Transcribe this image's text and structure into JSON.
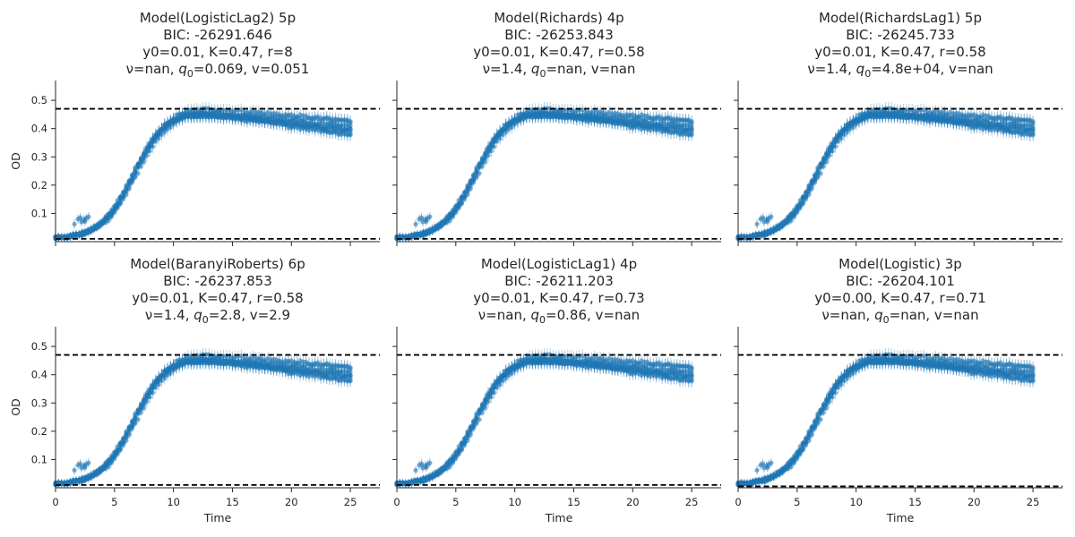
{
  "chart_data": [
    {
      "type": "scatter",
      "title_lines": [
        "Model(LogisticLag2) 5p",
        "BIC: -26291.646",
        "y0=0.01, K=0.47, r=8",
        [
          "ν=nan, ",
          "q",
          "0",
          "=0.069, v=0.051"
        ]
      ],
      "xlabel": "",
      "ylabel": "OD",
      "hlines": [
        0.47,
        0.01
      ]
    },
    {
      "type": "scatter",
      "title_lines": [
        "Model(Richards) 4p",
        "BIC: -26253.843",
        "y0=0.01, K=0.47, r=0.58",
        [
          "ν=1.4, ",
          "q",
          "0",
          "=nan, v=nan"
        ]
      ],
      "xlabel": "",
      "ylabel": "",
      "hlines": [
        0.47,
        0.01
      ]
    },
    {
      "type": "scatter",
      "title_lines": [
        "Model(RichardsLag1) 5p",
        "BIC: -26245.733",
        "y0=0.01, K=0.47, r=0.58",
        [
          "ν=1.4, ",
          "q",
          "0",
          "=4.8e+04, v=nan"
        ]
      ],
      "xlabel": "",
      "ylabel": "",
      "hlines": [
        0.47,
        0.01
      ]
    },
    {
      "type": "scatter",
      "title_lines": [
        "Model(BaranyiRoberts) 6p",
        "BIC: -26237.853",
        "y0=0.01, K=0.47, r=0.58",
        [
          "ν=1.4, ",
          "q",
          "0",
          "=2.8, v=2.9"
        ]
      ],
      "xlabel": "Time",
      "ylabel": "OD",
      "hlines": [
        0.47,
        0.01
      ]
    },
    {
      "type": "scatter",
      "title_lines": [
        "Model(LogisticLag1) 4p",
        "BIC: -26211.203",
        "y0=0.01, K=0.47, r=0.73",
        [
          "ν=nan, ",
          "q",
          "0",
          "=0.86, v=nan"
        ]
      ],
      "xlabel": "Time",
      "ylabel": "",
      "hlines": [
        0.47,
        0.01
      ]
    },
    {
      "type": "scatter",
      "title_lines": [
        "Model(Logistic) 3p",
        "BIC: -26204.101",
        "y0=0.00, K=0.47, r=0.71",
        [
          "ν=nan, ",
          "q",
          "0",
          "=nan, v=nan"
        ]
      ],
      "xlabel": "Time",
      "ylabel": "",
      "hlines": [
        0.47,
        0.005
      ]
    }
  ],
  "shared_axes": {
    "xlim": [
      0,
      27.5
    ],
    "ylim": [
      0,
      0.57
    ],
    "xticks": [
      0,
      5,
      10,
      15,
      20,
      25
    ],
    "yticks": [
      0.1,
      0.2,
      0.3,
      0.4,
      0.5
    ],
    "xtick_labels": [
      "0",
      "5",
      "10",
      "15",
      "20",
      "25"
    ],
    "ytick_labels": [
      "0.1",
      "0.2",
      "0.3",
      "0.4",
      "0.5"
    ],
    "grid": false
  },
  "data_series": {
    "description_free": true,
    "color": "#1f77b4",
    "t_start": 0,
    "t_end": 25,
    "t_step": 0.25,
    "y0": 0.01,
    "K": 0.47,
    "midpoint": 6.6,
    "rate": 0.72,
    "late_decline_min": 0.04,
    "late_decline_max": 0.09,
    "replicates": 8
  },
  "colors": {
    "marker": "#1f77b4",
    "hline": "#000000",
    "text": "#262626"
  }
}
